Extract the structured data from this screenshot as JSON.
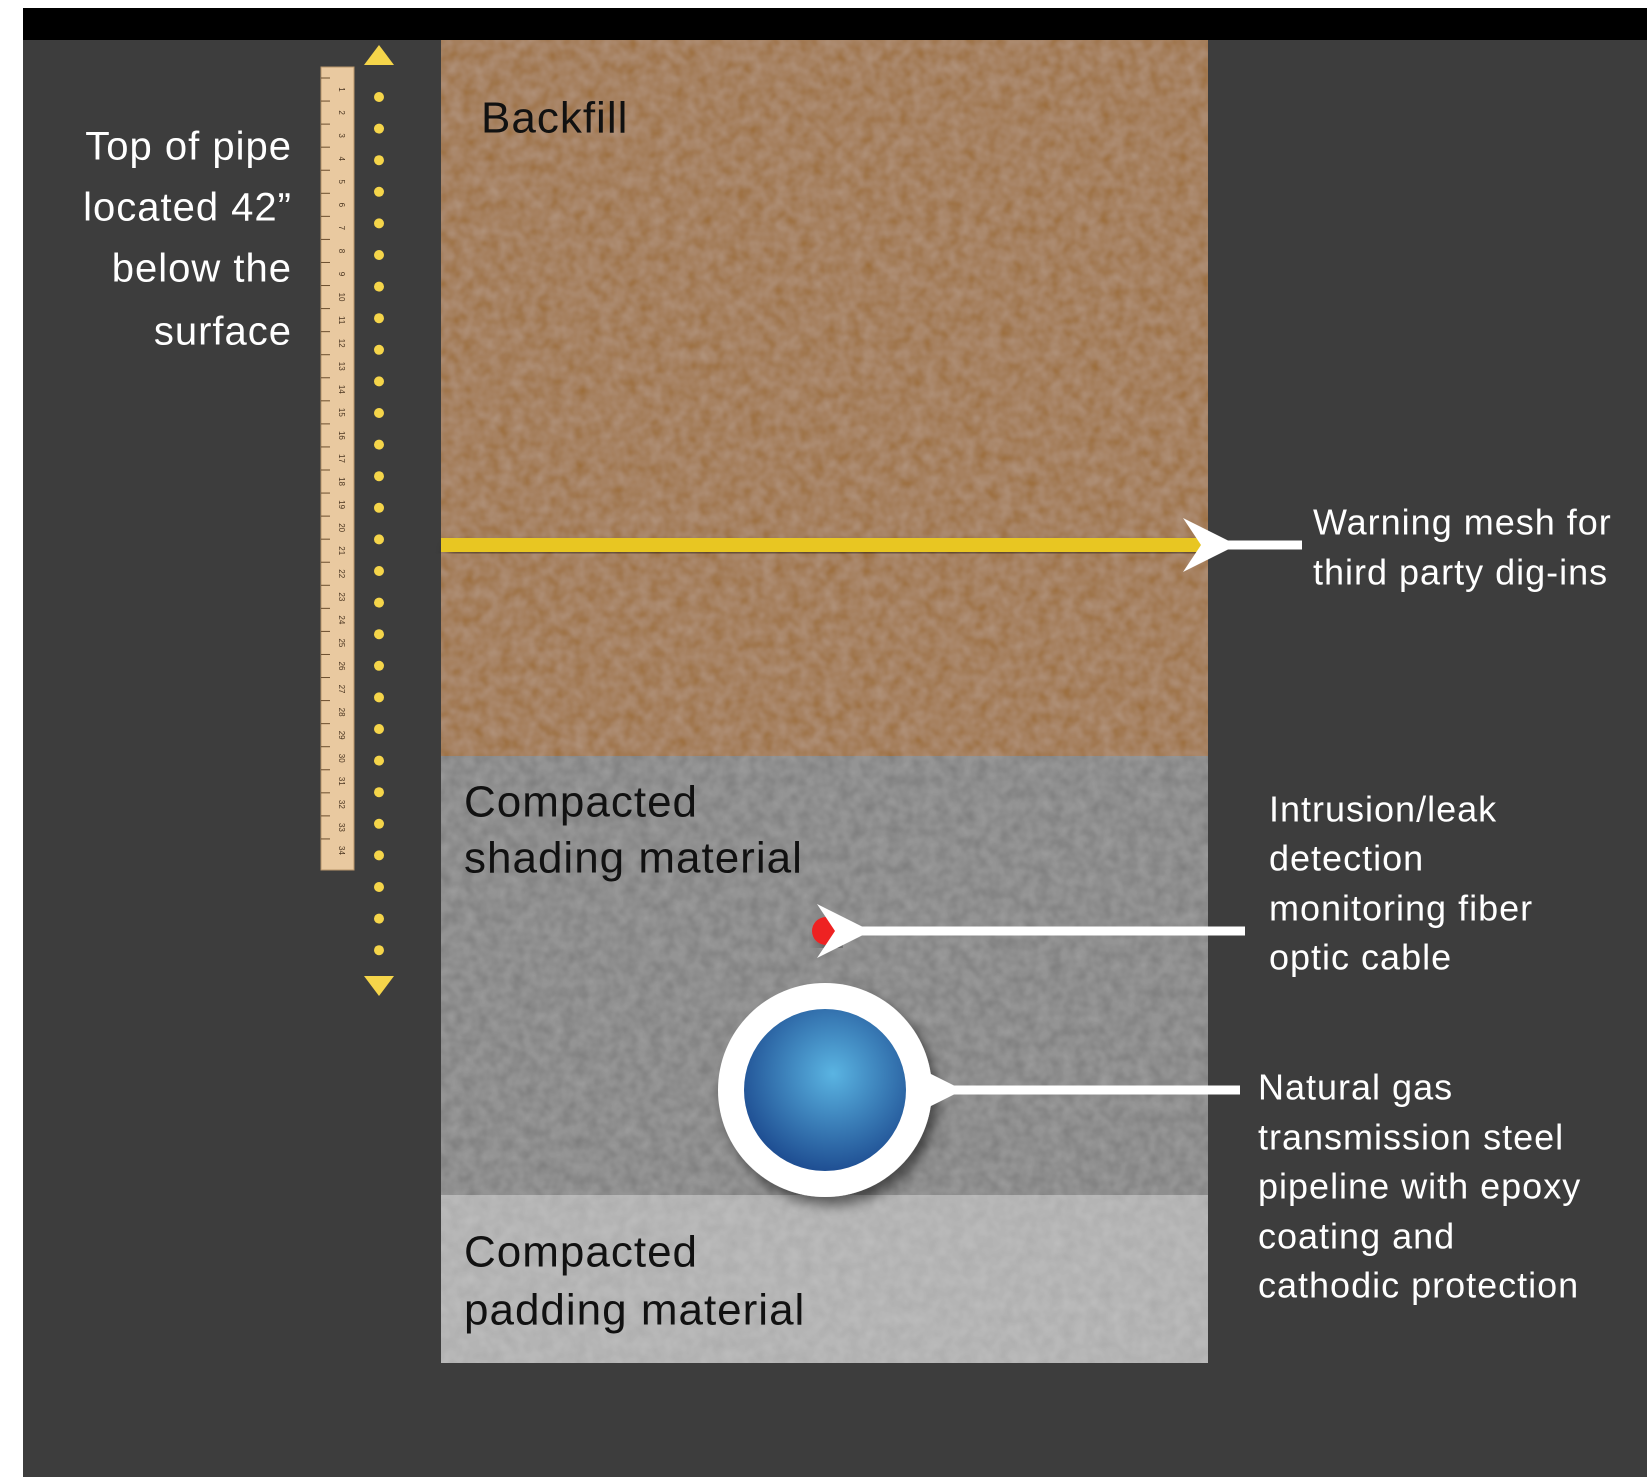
{
  "depth_note": {
    "lines": [
      "Top of pipe",
      "located 42”",
      "below the",
      "surface"
    ]
  },
  "ruler": {
    "numbers": [
      "1",
      "2",
      "3",
      "4",
      "5",
      "6",
      "7",
      "8",
      "9",
      "10",
      "11",
      "12",
      "13",
      "14",
      "15",
      "16",
      "17",
      "18",
      "19",
      "20",
      "21",
      "22",
      "23",
      "24",
      "25",
      "26",
      "27",
      "28",
      "29",
      "30",
      "31",
      "32",
      "33",
      "34"
    ]
  },
  "layers": {
    "backfill": "Backfill",
    "shading": [
      "Compacted",
      "shading material"
    ],
    "padding": [
      "Compacted",
      "padding material"
    ]
  },
  "callouts": {
    "mesh": [
      "Warning mesh for",
      "third party dig-ins"
    ],
    "fiber": [
      "Intrusion/leak",
      "detection",
      "monitoring fiber",
      "optic cable"
    ],
    "pipeline": [
      "Natural gas",
      "transmission steel",
      "pipeline with epoxy",
      "coating and",
      "cathodic protection"
    ]
  }
}
